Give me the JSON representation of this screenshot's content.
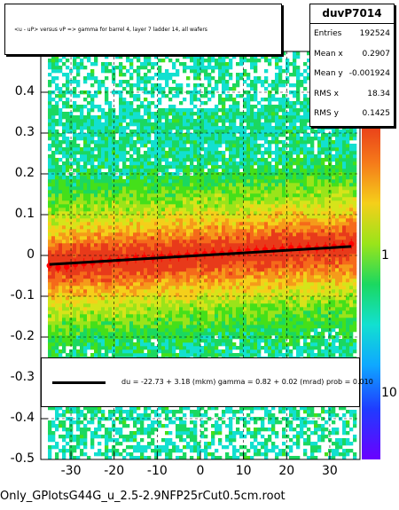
{
  "chart_data": {
    "type": "heatmap",
    "title": "<u - uP>       versus   vP =>  gamma for barrel 4, layer 7 ladder 14, all wafers",
    "xlabel": "",
    "ylabel": "",
    "xlim": [
      -37,
      37
    ],
    "ylim": [
      -0.5,
      0.5
    ],
    "x_ticks": [
      "-30",
      "-20",
      "-10",
      "0",
      "10",
      "20",
      "30"
    ],
    "x_tick_values": [
      -30,
      -20,
      -10,
      0,
      10,
      20,
      30
    ],
    "y_ticks": [
      "-0.5",
      "-0.4",
      "-0.3",
      "-0.2",
      "-0.1",
      "0",
      "0.1",
      "0.2",
      "0.3",
      "0.4"
    ],
    "y_tick_values": [
      -0.5,
      -0.4,
      -0.3,
      -0.2,
      -0.1,
      0,
      0.1,
      0.2,
      0.3,
      0.4
    ],
    "z_ticks": [
      "1",
      "10"
    ],
    "z_tick_values": [
      1,
      10
    ],
    "colors": {
      "profile": "#ff0000",
      "fit": "#000000",
      "palette": [
        "#6a00ff",
        "#1f3cff",
        "#0fa8ff",
        "#12e0d0",
        "#1bd860",
        "#44e01a",
        "#9ae41a",
        "#d6e41a",
        "#f5cf1a",
        "#f59b1a",
        "#f56a1a",
        "#e83a1a"
      ]
    },
    "profile_points": [
      {
        "x": -35,
        "y": -0.025
      },
      {
        "x": -33,
        "y": -0.03
      },
      {
        "x": -31,
        "y": -0.028
      },
      {
        "x": -29,
        "y": -0.022
      },
      {
        "x": -27,
        "y": -0.02
      },
      {
        "x": -25,
        "y": -0.018
      },
      {
        "x": -23,
        "y": -0.015
      },
      {
        "x": -21,
        "y": -0.013
      },
      {
        "x": -19,
        "y": -0.012
      },
      {
        "x": -17,
        "y": -0.01
      },
      {
        "x": -15,
        "y": -0.006
      },
      {
        "x": -13,
        "y": -0.005
      },
      {
        "x": -11,
        "y": -0.006
      },
      {
        "x": -9,
        "y": -0.003
      },
      {
        "x": -7,
        "y": -0.001
      },
      {
        "x": -5,
        "y": -0.002
      },
      {
        "x": -3,
        "y": 0.001
      },
      {
        "x": -1,
        "y": 0.002
      },
      {
        "x": 1,
        "y": 0.004
      },
      {
        "x": 3,
        "y": 0.006
      },
      {
        "x": 5,
        "y": 0.005
      },
      {
        "x": 7,
        "y": 0.008
      },
      {
        "x": 9,
        "y": 0.009
      },
      {
        "x": 11,
        "y": 0.011
      },
      {
        "x": 13,
        "y": 0.012
      },
      {
        "x": 15,
        "y": 0.014
      },
      {
        "x": 17,
        "y": 0.013
      },
      {
        "x": 19,
        "y": 0.016
      },
      {
        "x": 21,
        "y": 0.019
      },
      {
        "x": 23,
        "y": 0.018
      },
      {
        "x": 25,
        "y": 0.02
      },
      {
        "x": 27,
        "y": 0.018
      },
      {
        "x": 29,
        "y": 0.02
      },
      {
        "x": 31,
        "y": 0.022
      },
      {
        "x": 33,
        "y": 0.024
      },
      {
        "x": 35,
        "y": 0.028
      }
    ],
    "fit_line": {
      "x1": -35,
      "y1": -0.022,
      "x2": 35,
      "y2": 0.022
    }
  },
  "stats": {
    "name": "duvP7014",
    "rows": [
      {
        "label": "Entries",
        "value": "192524"
      },
      {
        "label": "Mean x",
        "value": "0.2907"
      },
      {
        "label": "Mean y",
        "value": "-0.001924"
      },
      {
        "label": "RMS x",
        "value": "18.34"
      },
      {
        "label": "RMS y",
        "value": "0.1425"
      }
    ]
  },
  "fit_legend": {
    "text": "du =  -22.73 +   3.18 (mkm) gamma =    0.82 +  0.02 (mrad) prob = 0.010"
  },
  "footer": "Only_GPlotsG44G_u_2.5-2.9NFP25rCut0.5cm.root"
}
